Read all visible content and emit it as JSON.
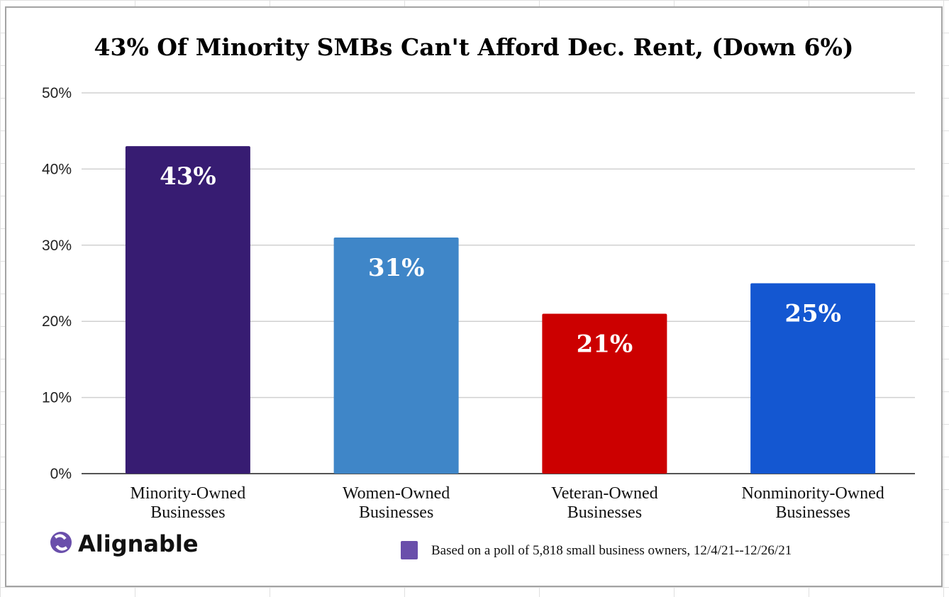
{
  "chart_data": {
    "type": "bar",
    "title": "43% Of Minority SMBs Can't Afford Dec. Rent, (Down 6%)",
    "categories": [
      [
        "Minority-Owned",
        "Businesses"
      ],
      [
        "Women-Owned",
        "Businesses"
      ],
      [
        "Veteran-Owned",
        "Businesses"
      ],
      [
        "Nonminority-Owned",
        "Businesses"
      ]
    ],
    "values": [
      43,
      31,
      21,
      25
    ],
    "data_labels": [
      "43%",
      "31%",
      "21%",
      "25%"
    ],
    "bar_colors": [
      "#371c72",
      "#3f86c8",
      "#cc0000",
      "#1457d1"
    ],
    "ylim": [
      0,
      50
    ],
    "yticks": [
      "0%",
      "10%",
      "20%",
      "30%",
      "40%",
      "50%"
    ],
    "grid": true,
    "legend": {
      "text": "Based on a poll of 5,818 small business owners, 12/4/21--12/26/21",
      "color": "#6a4fab",
      "position": "bottom-right"
    }
  },
  "logo": {
    "text": "Alignable",
    "color": "#6a4fab"
  }
}
